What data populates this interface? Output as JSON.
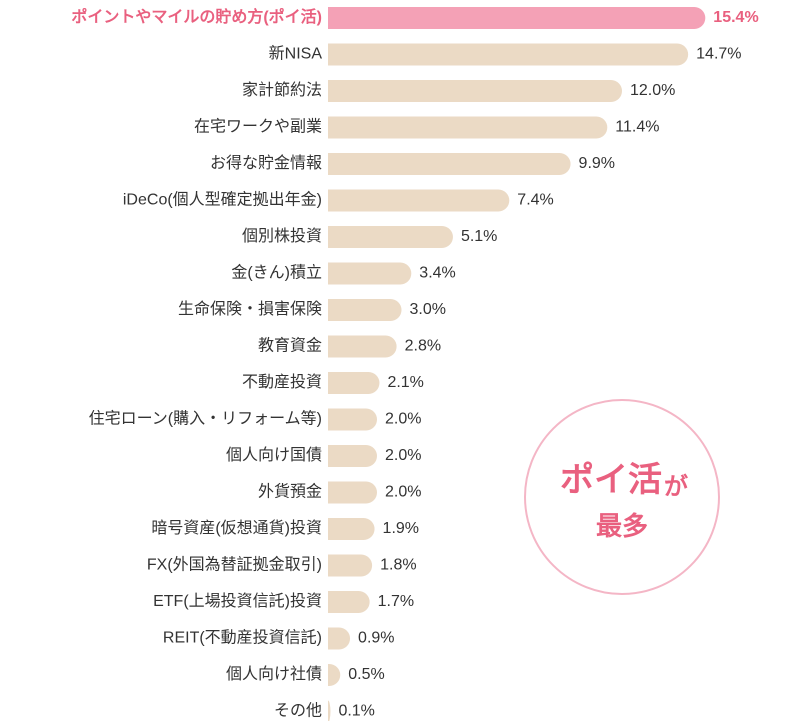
{
  "chart_data": {
    "type": "bar",
    "orientation": "horizontal",
    "categories": [
      "ポイントやマイルの貯め方(ポイ活)",
      "新NISA",
      "家計節約法",
      "在宅ワークや副業",
      "お得な貯金情報",
      "iDeCo(個人型確定拠出年金)",
      "個別株投資",
      "金(きん)積立",
      "生命保険・損害保険",
      "教育資金",
      "不動産投資",
      "住宅ローン(購入・リフォーム等)",
      "個人向け国債",
      "外貨預金",
      "暗号資産(仮想通貨)投資",
      "FX(外国為替証拠金取引)",
      "ETF(上場投資信託)投資",
      "REIT(不動産投資信託)",
      "個人向け社債",
      "その他"
    ],
    "values": [
      15.4,
      14.7,
      12.0,
      11.4,
      9.9,
      7.4,
      5.1,
      3.4,
      3.0,
      2.8,
      2.1,
      2.0,
      2.0,
      2.0,
      1.9,
      1.8,
      1.7,
      0.9,
      0.5,
      0.1
    ],
    "value_labels": [
      "15.4%",
      "14.7%",
      "12.0%",
      "11.4%",
      "9.9%",
      "7.4%",
      "5.1%",
      "3.4%",
      "3.0%",
      "2.8%",
      "2.1%",
      "2.0%",
      "2.0%",
      "2.0%",
      "1.9%",
      "1.8%",
      "1.7%",
      "0.9%",
      "0.5%",
      "0.1%"
    ],
    "colors": [
      "#f4a1b6",
      "#ebdac5",
      "#ebdac5",
      "#ebdac5",
      "#ebdac5",
      "#ebdac5",
      "#ebdac5",
      "#ebdac5",
      "#ebdac5",
      "#ebdac5",
      "#ebdac5",
      "#ebdac5",
      "#ebdac5",
      "#ebdac5",
      "#ebdac5",
      "#ebdac5",
      "#ebdac5",
      "#ebdac5",
      "#ebdac5",
      "#ebdac5"
    ],
    "highlight_text_color": "#e9607f",
    "xlim": [
      0,
      16
    ],
    "annotation": {
      "main": "ポイ活",
      "suffix": "が",
      "second": "最多"
    }
  }
}
